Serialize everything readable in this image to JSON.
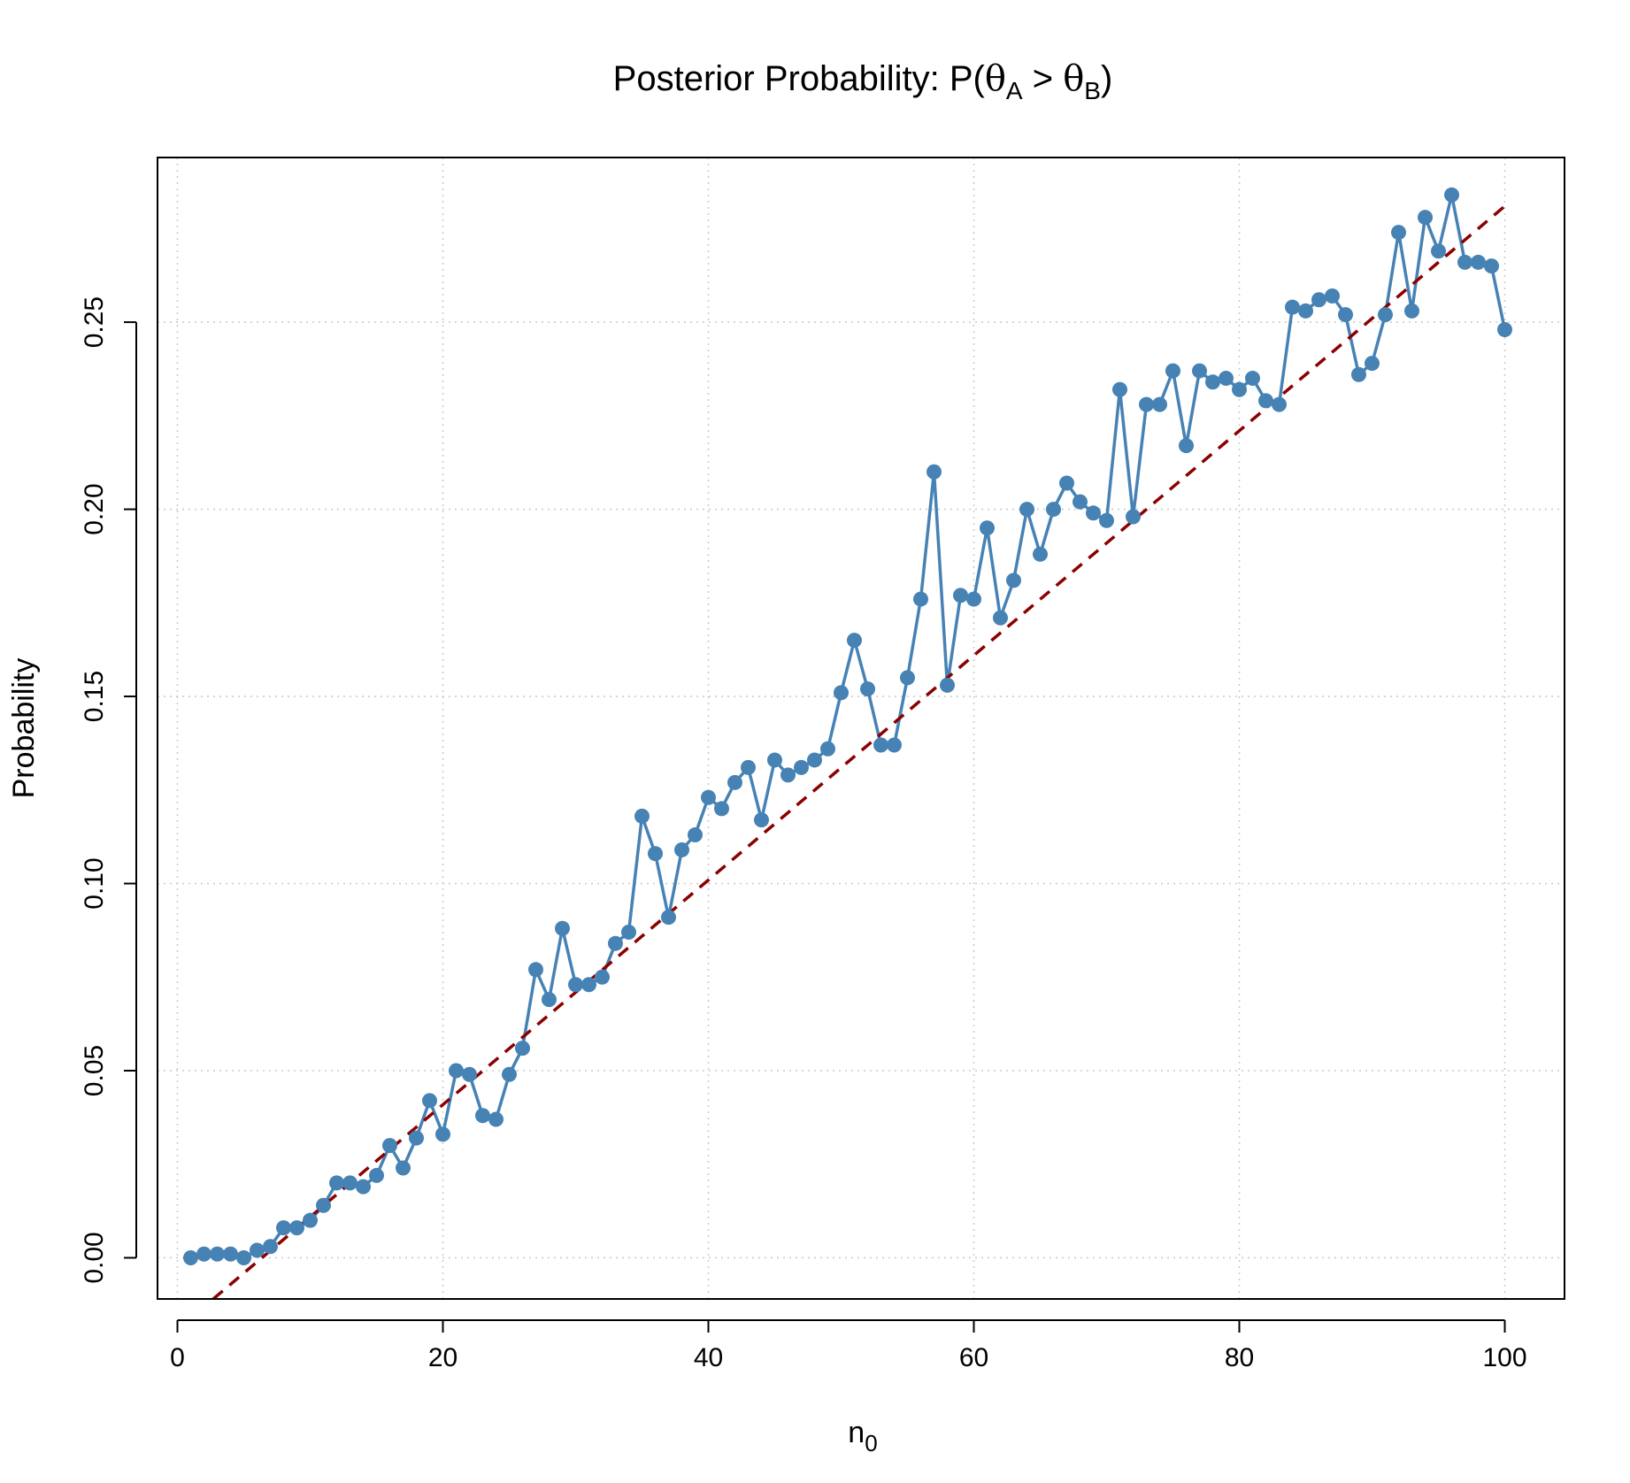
{
  "chart_data": {
    "type": "line",
    "title": {
      "prefix": "Posterior Probability:  P(",
      "theta1": "θ",
      "sub1": "A",
      "op": " > ",
      "theta2": "θ",
      "sub2": "B",
      "suffix": ")"
    },
    "xlabel": {
      "base": "n",
      "sub": "0"
    },
    "ylabel": "Probability",
    "xlim": [
      -1.5,
      104.5
    ],
    "ylim": [
      -0.011,
      0.294
    ],
    "xticks": [
      0,
      20,
      40,
      60,
      80,
      100
    ],
    "xtick_labels": [
      "0",
      "20",
      "40",
      "60",
      "80",
      "100"
    ],
    "yticks": [
      0.0,
      0.05,
      0.1,
      0.15,
      0.2,
      0.25
    ],
    "ytick_labels": [
      "0.00",
      "0.05",
      "0.10",
      "0.15",
      "0.20",
      "0.25"
    ],
    "grid": true,
    "series": [
      {
        "color": "#4682B4",
        "style": "line+points",
        "x": [
          1,
          2,
          3,
          4,
          5,
          6,
          7,
          8,
          9,
          10,
          11,
          12,
          13,
          14,
          15,
          16,
          17,
          18,
          19,
          20,
          21,
          22,
          23,
          24,
          25,
          26,
          27,
          28,
          29,
          30,
          31,
          32,
          33,
          34,
          35,
          36,
          37,
          38,
          39,
          40,
          41,
          42,
          43,
          44,
          45,
          46,
          47,
          48,
          49,
          50,
          51,
          52,
          53,
          54,
          55,
          56,
          57,
          58,
          59,
          60,
          61,
          62,
          63,
          64,
          65,
          66,
          67,
          68,
          69,
          70,
          71,
          72,
          73,
          74,
          75,
          76,
          77,
          78,
          79,
          80,
          81,
          82,
          83,
          84,
          85,
          86,
          87,
          88,
          89,
          90,
          91,
          92,
          93,
          94,
          95,
          96,
          97,
          98,
          99,
          100
        ],
        "values": [
          0.0,
          0.001,
          0.001,
          0.001,
          0.0,
          0.002,
          0.003,
          0.008,
          0.008,
          0.01,
          0.014,
          0.02,
          0.02,
          0.019,
          0.022,
          0.03,
          0.024,
          0.032,
          0.042,
          0.033,
          0.05,
          0.049,
          0.038,
          0.037,
          0.049,
          0.056,
          0.077,
          0.069,
          0.088,
          0.073,
          0.073,
          0.075,
          0.084,
          0.087,
          0.118,
          0.108,
          0.091,
          0.109,
          0.113,
          0.123,
          0.12,
          0.127,
          0.131,
          0.117,
          0.133,
          0.129,
          0.131,
          0.133,
          0.136,
          0.151,
          0.165,
          0.152,
          0.137,
          0.137,
          0.155,
          0.176,
          0.21,
          0.153,
          0.177,
          0.176,
          0.195,
          0.171,
          0.181,
          0.2,
          0.188,
          0.2,
          0.207,
          0.202,
          0.199,
          0.197,
          0.232,
          0.198,
          0.228,
          0.228,
          0.237,
          0.217,
          0.237,
          0.234,
          0.235,
          0.232,
          0.235,
          0.229,
          0.228,
          0.254,
          0.253,
          0.256,
          0.257,
          0.252,
          0.236,
          0.239,
          0.252,
          0.274,
          0.253,
          0.278,
          0.269,
          0.284,
          0.266,
          0.266,
          0.265,
          0.248
        ]
      },
      {
        "color": "#8B0000",
        "style": "dashed-line",
        "x": [
          2.7,
          100
        ],
        "values": [
          -0.011,
          0.281
        ]
      }
    ]
  }
}
